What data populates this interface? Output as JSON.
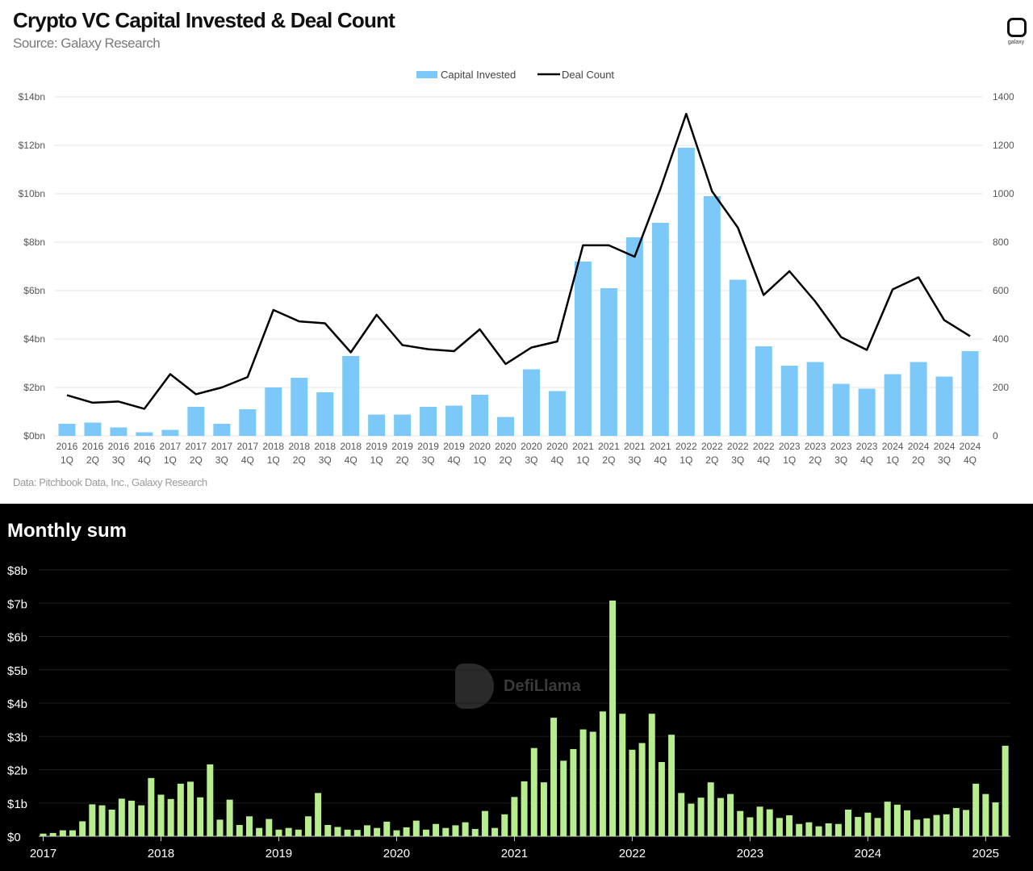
{
  "top": {
    "title": "Crypto VC Capital Invested & Deal Count",
    "subtitle": "Source: Galaxy Research",
    "footnote": "Data: Pitchbook Data, Inc., Galaxy Research",
    "logo_text": "galaxy"
  },
  "bottom": {
    "title": "Monthly sum",
    "watermark": "DefiLlama"
  },
  "colors": {
    "bar_blue": "#7cc8f8",
    "line_black": "#000000",
    "bar_green": "#b7ec8f"
  },
  "chart_data": [
    {
      "type": "bar",
      "title": "Crypto VC Capital Invested & Deal Count",
      "subtitle": "Source: Galaxy Research",
      "legend_position": "top-center",
      "grid": true,
      "categories": [
        [
          "2016",
          "1Q"
        ],
        [
          "2016",
          "2Q"
        ],
        [
          "2016",
          "3Q"
        ],
        [
          "2016",
          "4Q"
        ],
        [
          "2017",
          "1Q"
        ],
        [
          "2017",
          "2Q"
        ],
        [
          "2017",
          "3Q"
        ],
        [
          "2017",
          "4Q"
        ],
        [
          "2018",
          "1Q"
        ],
        [
          "2018",
          "2Q"
        ],
        [
          "2018",
          "3Q"
        ],
        [
          "2018",
          "4Q"
        ],
        [
          "2019",
          "1Q"
        ],
        [
          "2019",
          "2Q"
        ],
        [
          "2019",
          "3Q"
        ],
        [
          "2019",
          "4Q"
        ],
        [
          "2020",
          "1Q"
        ],
        [
          "2020",
          "2Q"
        ],
        [
          "2020",
          "3Q"
        ],
        [
          "2020",
          "4Q"
        ],
        [
          "2021",
          "1Q"
        ],
        [
          "2021",
          "2Q"
        ],
        [
          "2021",
          "3Q"
        ],
        [
          "2021",
          "4Q"
        ],
        [
          "2022",
          "1Q"
        ],
        [
          "2022",
          "2Q"
        ],
        [
          "2022",
          "3Q"
        ],
        [
          "2022",
          "4Q"
        ],
        [
          "2023",
          "1Q"
        ],
        [
          "2023",
          "2Q"
        ],
        [
          "2023",
          "3Q"
        ],
        [
          "2023",
          "4Q"
        ],
        [
          "2024",
          "1Q"
        ],
        [
          "2024",
          "2Q"
        ],
        [
          "2024",
          "3Q"
        ],
        [
          "2024",
          "4Q"
        ]
      ],
      "left_axis": {
        "ylim": [
          0,
          14
        ],
        "ticks": [
          "$0bn",
          "$2bn",
          "$4bn",
          "$6bn",
          "$8bn",
          "$10bn",
          "$12bn",
          "$14bn"
        ]
      },
      "right_axis": {
        "ylim": [
          0,
          1400
        ],
        "ticks": [
          "0",
          "200",
          "400",
          "600",
          "800",
          "1000",
          "1200",
          "1400"
        ]
      },
      "series": [
        {
          "name": "Capital Invested",
          "type": "bar",
          "axis": "left",
          "values": [
            0.5,
            0.55,
            0.35,
            0.15,
            0.25,
            1.2,
            0.5,
            1.1,
            2.0,
            2.4,
            1.8,
            3.3,
            0.88,
            0.88,
            1.2,
            1.25,
            1.7,
            0.78,
            2.75,
            1.85,
            7.2,
            6.1,
            8.2,
            8.8,
            11.9,
            9.9,
            6.45,
            3.7,
            2.9,
            3.05,
            2.15,
            1.95,
            2.55,
            3.05,
            2.45,
            3.5
          ]
        },
        {
          "name": "Deal Count",
          "type": "line",
          "axis": "right",
          "values": [
            168,
            137,
            142,
            112,
            255,
            172,
            200,
            243,
            520,
            473,
            465,
            345,
            500,
            375,
            358,
            350,
            440,
            297,
            365,
            390,
            787,
            787,
            740,
            1020,
            1330,
            1010,
            860,
            582,
            680,
            555,
            408,
            355,
            605,
            655,
            478,
            412
          ]
        }
      ]
    },
    {
      "type": "bar",
      "title": "Monthly sum",
      "grid": true,
      "x_start": "2017-01",
      "x_end": "2025-03",
      "x_ticks": [
        "2017",
        "2018",
        "2019",
        "2020",
        "2021",
        "2022",
        "2023",
        "2024",
        "2025"
      ],
      "ylim": [
        0,
        8
      ],
      "y_ticks": [
        "$0",
        "$1b",
        "$2b",
        "$3b",
        "$4b",
        "$5b",
        "$6b",
        "$7b",
        "$8b"
      ],
      "values": [
        0.08,
        0.1,
        0.18,
        0.18,
        0.45,
        0.96,
        0.93,
        0.8,
        1.13,
        1.07,
        0.93,
        1.75,
        1.25,
        1.12,
        1.58,
        1.64,
        1.17,
        2.16,
        0.5,
        1.1,
        0.34,
        0.6,
        0.25,
        0.52,
        0.2,
        0.25,
        0.2,
        0.6,
        1.3,
        0.34,
        0.28,
        0.2,
        0.19,
        0.33,
        0.25,
        0.44,
        0.18,
        0.27,
        0.47,
        0.2,
        0.37,
        0.25,
        0.33,
        0.42,
        0.22,
        0.76,
        0.25,
        0.66,
        1.18,
        1.65,
        2.65,
        1.62,
        3.56,
        2.27,
        2.62,
        3.21,
        3.14,
        3.75,
        7.08,
        3.68,
        2.6,
        2.8,
        3.68,
        2.23,
        3.05,
        1.3,
        0.98,
        1.16,
        1.62,
        1.15,
        1.27,
        0.76,
        0.57,
        0.89,
        0.81,
        0.55,
        0.63,
        0.37,
        0.42,
        0.3,
        0.39,
        0.37,
        0.8,
        0.58,
        0.71,
        0.55,
        1.04,
        0.95,
        0.78,
        0.5,
        0.54,
        0.64,
        0.66,
        0.85,
        0.79,
        1.58,
        1.27,
        1.02,
        2.72
      ]
    }
  ]
}
